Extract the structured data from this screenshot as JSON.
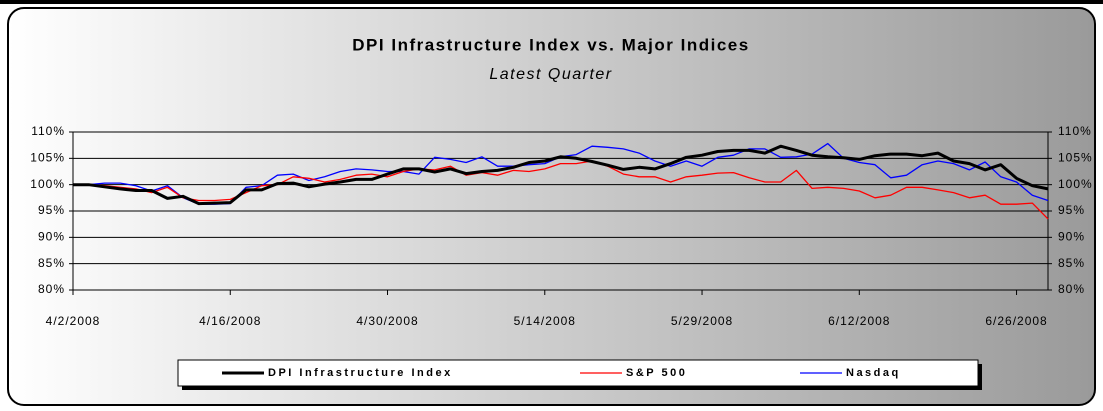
{
  "chart_data": {
    "type": "line",
    "title": "DPI Infrastructure Index vs. Major Indices",
    "subtitle": "Latest Quarter",
    "categories": [
      "4/2/2008",
      null,
      null,
      null,
      null,
      null,
      null,
      null,
      null,
      null,
      "4/16/2008",
      null,
      null,
      null,
      null,
      null,
      null,
      null,
      null,
      null,
      "4/30/2008",
      null,
      null,
      null,
      null,
      null,
      null,
      null,
      null,
      null,
      "5/14/2008",
      null,
      null,
      null,
      null,
      null,
      null,
      null,
      null,
      null,
      "5/29/2008",
      null,
      null,
      null,
      null,
      null,
      null,
      null,
      null,
      null,
      "6/12/2008",
      null,
      null,
      null,
      null,
      null,
      null,
      null,
      null,
      null,
      "6/26/2008",
      null,
      null
    ],
    "series": [
      {
        "name": "DPI Infrastructure Index",
        "color": "#000000",
        "width": 3,
        "values": [
          100,
          100,
          99.6,
          99.2,
          98.9,
          98.9,
          97.4,
          97.8,
          96.4,
          96.5,
          96.6,
          99,
          99,
          100.2,
          100.3,
          99.6,
          100.1,
          100.5,
          101,
          101,
          102,
          103,
          103,
          102.4,
          103,
          102.1,
          102.5,
          102.7,
          103.3,
          104.2,
          104.5,
          105.3,
          105,
          104.4,
          103.7,
          102.9,
          103.3,
          103,
          104,
          105.2,
          105.6,
          106.3,
          106.5,
          106.5,
          106,
          107.3,
          106.5,
          105.6,
          105.3,
          105.1,
          104.8,
          105.5,
          105.8,
          105.8,
          105.5,
          106,
          104.5,
          104,
          102.8,
          103.8,
          101.2,
          99.8,
          99.2
        ]
      },
      {
        "name": "S&P 500",
        "color": "#ff0000",
        "width": 1.3,
        "values": [
          100,
          100,
          99.8,
          99.5,
          99.2,
          98.5,
          99.5,
          97.5,
          97,
          97,
          97.2,
          98.5,
          99.8,
          100,
          101.5,
          101.2,
          100.5,
          101,
          101.8,
          102,
          101.5,
          102.5,
          103,
          102.8,
          103.5,
          101.8,
          102.3,
          101.8,
          102.7,
          102.5,
          103,
          104,
          104,
          104.5,
          103.5,
          102,
          101.5,
          101.5,
          100.5,
          101.5,
          101.8,
          102.2,
          102.3,
          101.3,
          100.5,
          100.5,
          102.7,
          99.3,
          99.5,
          99.3,
          98.8,
          97.5,
          98,
          99.5,
          99.5,
          99,
          98.5,
          97.5,
          98,
          96.3,
          96.3,
          96.5,
          93.5
        ]
      },
      {
        "name": "Nasdaq",
        "color": "#0000ff",
        "width": 1.3,
        "values": [
          100,
          100,
          100.3,
          100.3,
          99.8,
          98.8,
          99.8,
          97.5,
          96.3,
          96.3,
          96.4,
          99.5,
          99.8,
          101.8,
          102,
          100.8,
          101.5,
          102.5,
          103,
          102.8,
          102.5,
          102.5,
          102,
          105.2,
          104.8,
          104.2,
          105.3,
          103.5,
          103.5,
          103.8,
          104,
          105.3,
          105.7,
          107.3,
          107.1,
          106.8,
          106,
          104.5,
          103.5,
          104.5,
          103.5,
          105.2,
          105.6,
          106.8,
          106.8,
          105.2,
          105.3,
          105.8,
          107.8,
          105,
          104.2,
          103.8,
          101.3,
          101.8,
          103.8,
          104.5,
          104,
          102.8,
          104.3,
          101.5,
          100.5,
          98,
          97
        ]
      }
    ],
    "ylim": [
      80,
      110
    ],
    "yticks": [
      {
        "value": 80,
        "label": "80%"
      },
      {
        "value": 85,
        "label": "85%"
      },
      {
        "value": 90,
        "label": "90%"
      },
      {
        "value": 95,
        "label": "95%"
      },
      {
        "value": 100,
        "label": "100%"
      },
      {
        "value": 105,
        "label": "105%"
      },
      {
        "value": 110,
        "label": "110%"
      }
    ],
    "grid": true,
    "legend": "bottom"
  }
}
